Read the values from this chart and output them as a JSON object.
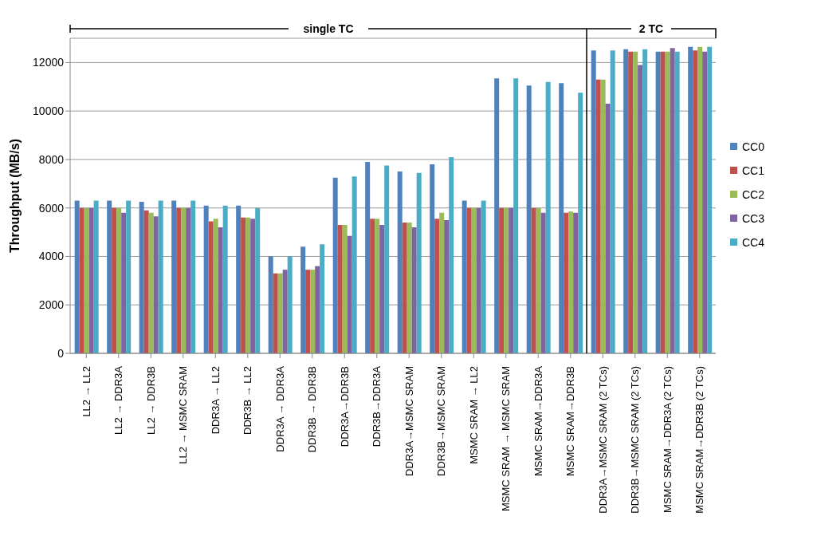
{
  "chart_data": {
    "type": "bar",
    "ylabel": "Throughput (MB/s)",
    "categories": [
      "LL2 → LL2",
      "LL2 → DDR3A",
      "LL2 → DDR3B",
      "LL2 → MSMC SRAM",
      "DDR3A → LL2",
      "DDR3B → LL2",
      "DDR3A → DDR3A",
      "DDR3B → DDR3B",
      "DDR3A→DDR3B",
      "DDR3B→DDR3A",
      "DDR3A→MSMC SRAM",
      "DDR3B→MSMC SRAM",
      "MSMC SRAM → LL2",
      "MSMC SRAM → MSMC SRAM",
      "MSMC SRAM→DDR3A",
      "MSMC SRAM→DDR3B",
      "DDR3A→MSMC SRAM (2 TCs)",
      "DDR3B→MSMC SRAM (2 TCs)",
      "MSMC SRAM→DDR3A (2 TCs)",
      "MSMC SRAM→DDR3B (2 TCs)"
    ],
    "series": [
      {
        "name": "CC0",
        "color": "#4f81bd",
        "values": [
          6300,
          6300,
          6250,
          6300,
          6100,
          6100,
          4000,
          4400,
          7250,
          7900,
          7500,
          7800,
          6300,
          11350,
          11050,
          11150,
          12500,
          12550,
          12450,
          12650
        ]
      },
      {
        "name": "CC1",
        "color": "#c0504d",
        "values": [
          6000,
          6000,
          5900,
          6000,
          5450,
          5600,
          3300,
          3450,
          5300,
          5550,
          5400,
          5550,
          6000,
          6000,
          6000,
          5800,
          11300,
          12450,
          12450,
          12500
        ]
      },
      {
        "name": "CC2",
        "color": "#9bbb59",
        "values": [
          6000,
          6000,
          5800,
          6000,
          5550,
          5600,
          3300,
          3450,
          5300,
          5550,
          5400,
          5800,
          6000,
          6000,
          6000,
          5850,
          11300,
          12450,
          12450,
          12650
        ]
      },
      {
        "name": "CC3",
        "color": "#8064a2",
        "values": [
          6000,
          5800,
          5650,
          6000,
          5200,
          5550,
          3450,
          3600,
          4850,
          5300,
          5200,
          5500,
          6000,
          6000,
          5800,
          5800,
          10300,
          11900,
          12600,
          12450
        ]
      },
      {
        "name": "CC4",
        "color": "#4bacc6",
        "values": [
          6300,
          6300,
          6300,
          6300,
          6100,
          6000,
          4000,
          4500,
          7300,
          7750,
          7450,
          8100,
          6300,
          11350,
          11200,
          10750,
          12500,
          12550,
          12450,
          12650
        ]
      }
    ],
    "ylim": [
      0,
      13000
    ],
    "yticks": [
      0,
      2000,
      4000,
      6000,
      8000,
      10000,
      12000
    ],
    "grid": "y",
    "legend": "right",
    "annotations": [
      "single TC",
      "2 TC"
    ]
  }
}
